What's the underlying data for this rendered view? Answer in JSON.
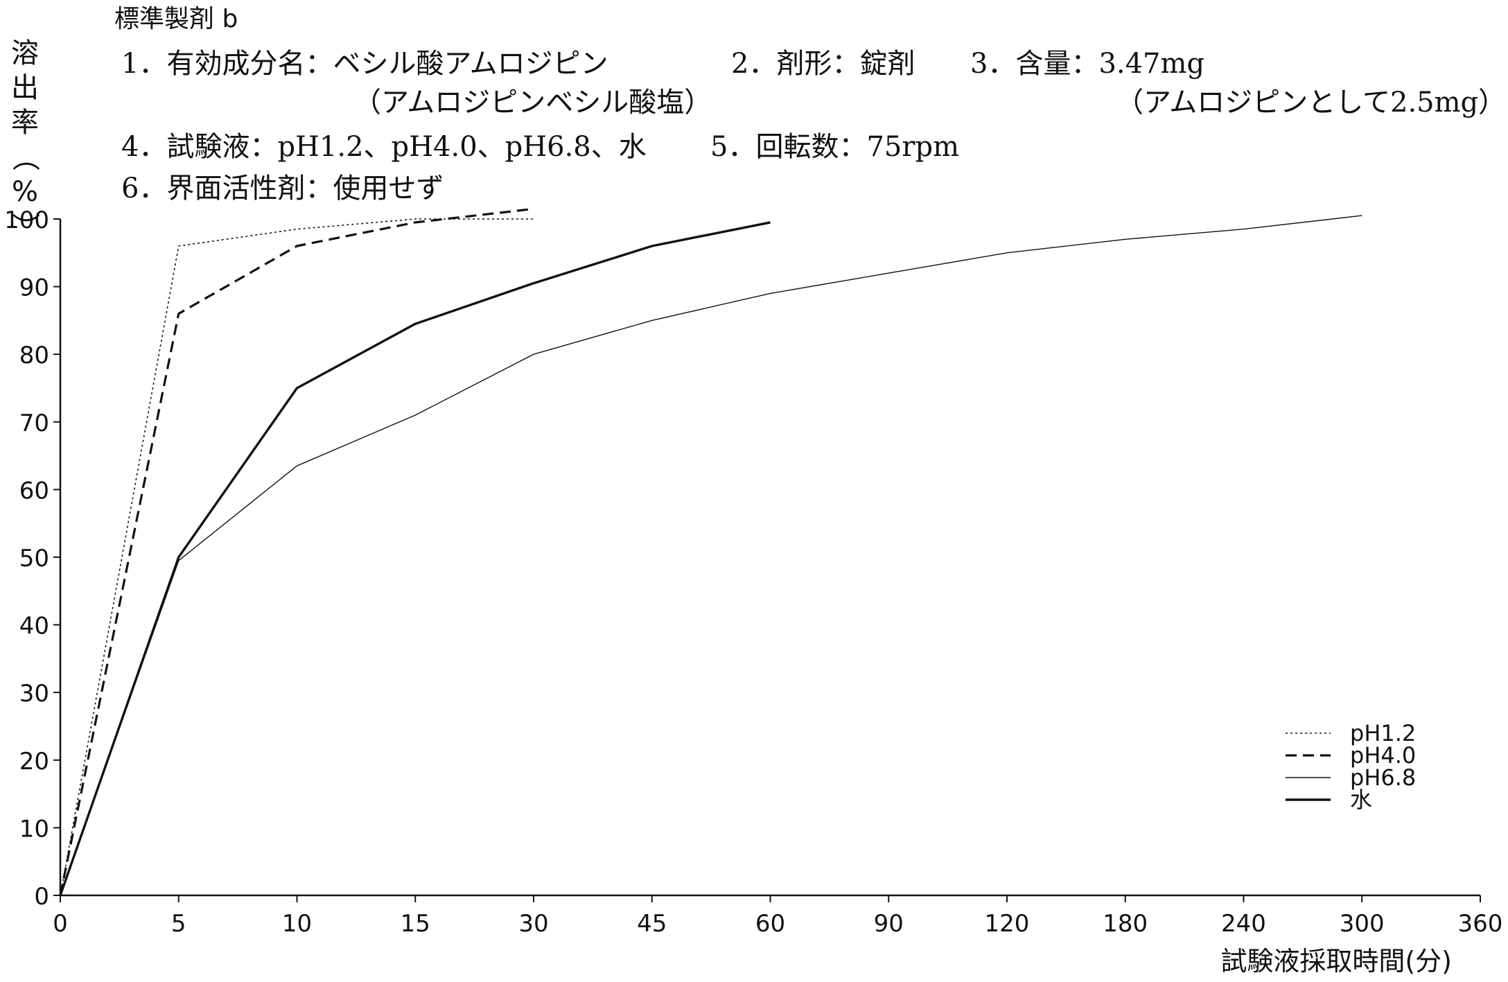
{
  "header": {
    "title": "標準製剤 b",
    "line1_a": "1．有効成分名：ベシル酸アムロジピン",
    "line1_b": "2．剤形：錠剤",
    "line1_c": "3．含量：3.47mg",
    "line2_a": "（アムロジピンベシル酸塩）",
    "line2_b": "（アムロジピンとして2.5mg）",
    "line3_a": "4．試験液：pH1.2、pH4.0、pH6.8、水",
    "line3_b": "5．回転数：75rpm",
    "line4": "6．界面活性剤：使用せず"
  },
  "y_axis_title": [
    "溶",
    "出",
    "率",
    "（",
    "%",
    "）"
  ],
  "x_axis_title": "試験液採取時間(分)",
  "chart_data": {
    "type": "line",
    "title": "標準製剤 b",
    "xlabel": "試験液採取時間(分)",
    "ylabel": "溶出率(%)",
    "categories": [
      "0",
      "5",
      "10",
      "15",
      "30",
      "45",
      "60",
      "90",
      "120",
      "180",
      "240",
      "300",
      "360"
    ],
    "ylim": [
      0,
      100
    ],
    "y_ticks": [
      "0",
      "10",
      "20",
      "30",
      "40",
      "50",
      "60",
      "70",
      "80",
      "90",
      "100"
    ],
    "legend_position": "bottom-right",
    "grid": false,
    "series": [
      {
        "name": "pH1.2",
        "style": "dotted",
        "color": "#111111",
        "x": [
          "0",
          "5",
          "10",
          "15",
          "30"
        ],
        "values": [
          0,
          96,
          98.5,
          100,
          100
        ]
      },
      {
        "name": "pH4.0",
        "style": "dashed",
        "color": "#111111",
        "x": [
          "0",
          "5",
          "10",
          "15",
          "30"
        ],
        "values": [
          0,
          86,
          96,
          99.5,
          101.5
        ]
      },
      {
        "name": "pH6.8",
        "style": "thin",
        "color": "#111111",
        "x": [
          "0",
          "5",
          "10",
          "15",
          "30",
          "45",
          "60",
          "90",
          "120",
          "180",
          "240",
          "300"
        ],
        "values": [
          0,
          49.5,
          63.5,
          71,
          80,
          85,
          89,
          92,
          95,
          97,
          98.5,
          100.5
        ]
      },
      {
        "name": "水",
        "style": "thick",
        "color": "#111111",
        "x": [
          "0",
          "5",
          "10",
          "15",
          "30",
          "45",
          "60"
        ],
        "values": [
          0,
          50,
          75,
          84.5,
          90.5,
          96,
          99.5
        ]
      }
    ]
  }
}
